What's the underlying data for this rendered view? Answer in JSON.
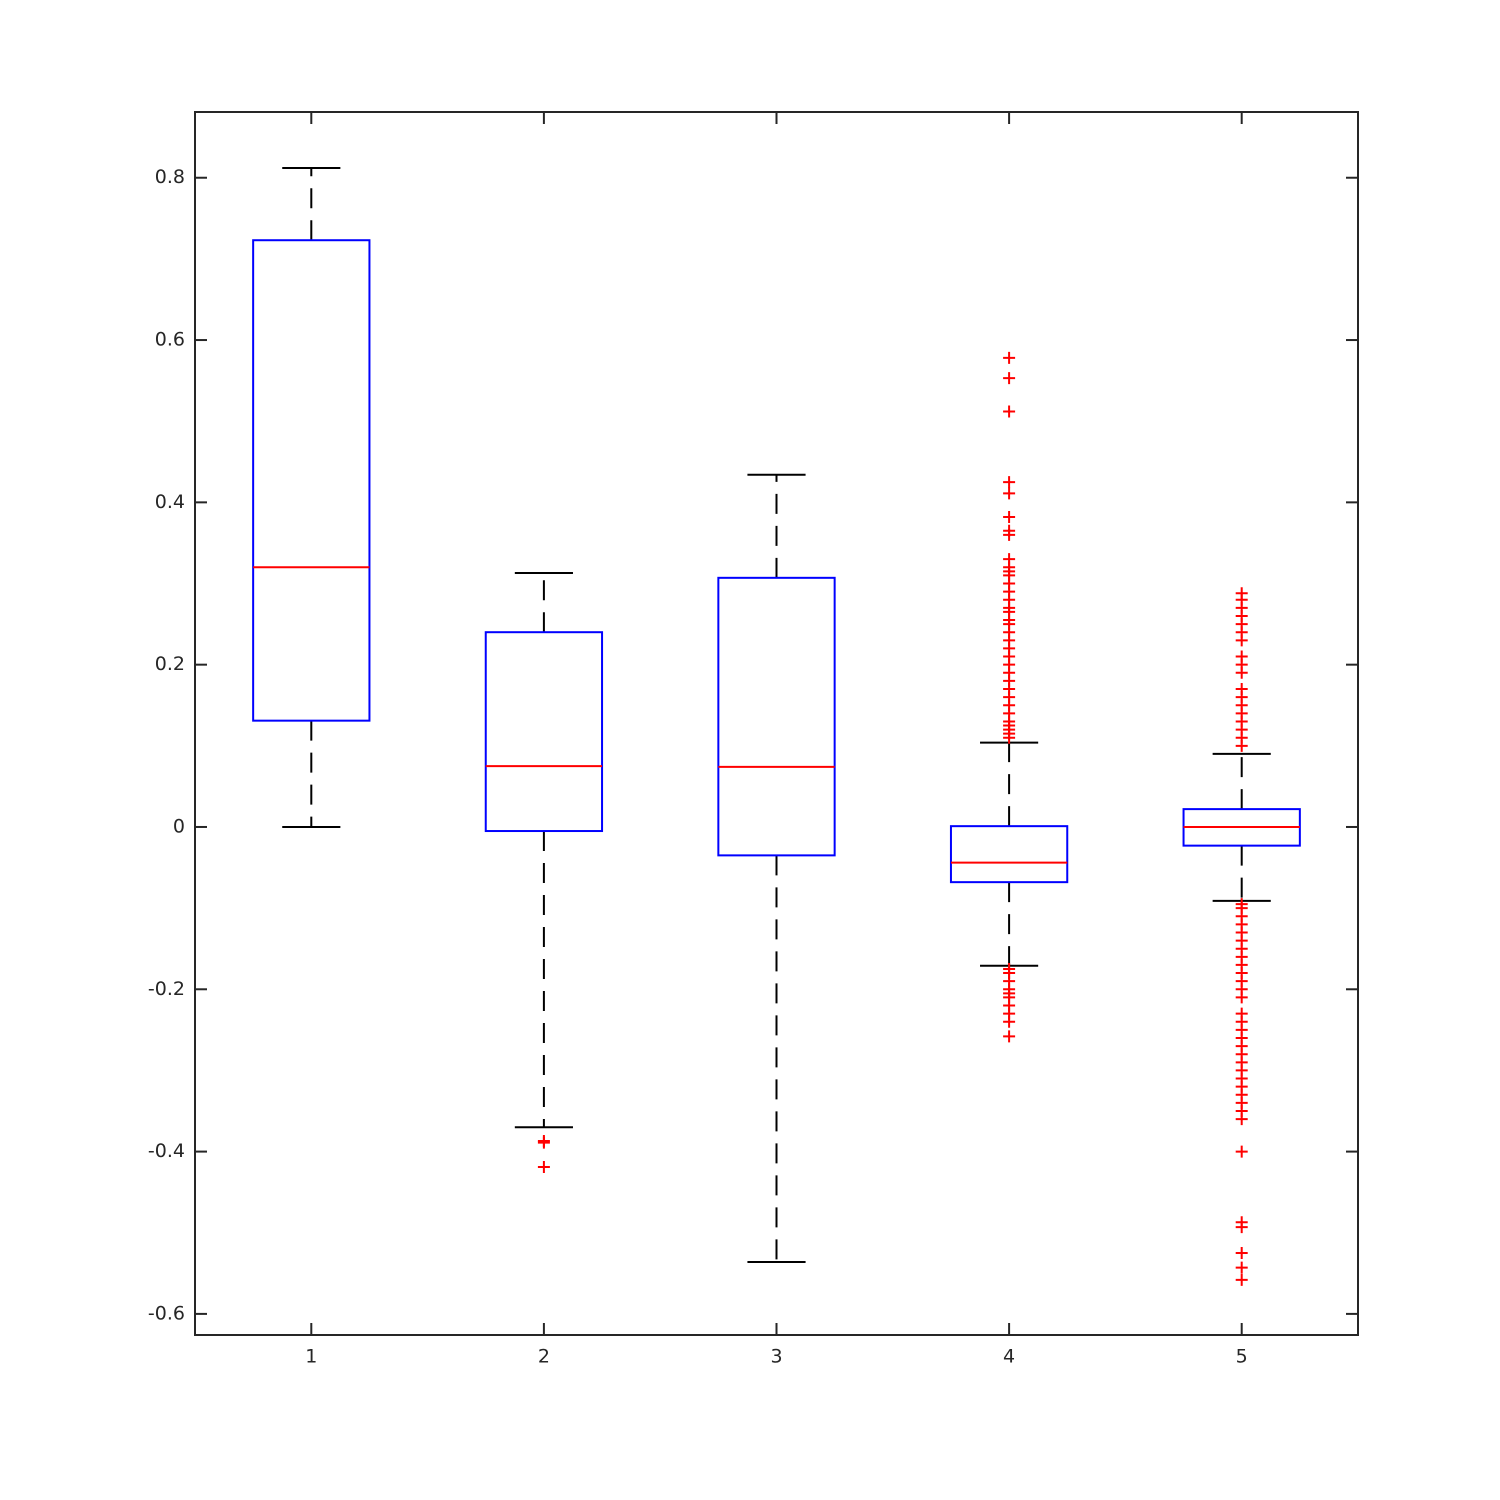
{
  "chart_data": {
    "type": "box",
    "categories": [
      "1",
      "2",
      "3",
      "4",
      "5"
    ],
    "ylim": [
      -0.626,
      0.881
    ],
    "yticks": [
      -0.6,
      -0.4,
      -0.2,
      0,
      0.2,
      0.4,
      0.6,
      0.8
    ],
    "box_color": "#0000ff",
    "median_color": "#ff0000",
    "whisker_color": "#000000",
    "outlier_color": "#ff0000",
    "boxes": [
      {
        "whisker_low": 0,
        "q1": 0.131,
        "median": 0.32,
        "q3": 0.723,
        "whisker_high": 0.812,
        "outliers": []
      },
      {
        "whisker_low": -0.37,
        "q1": -0.005,
        "median": 0.075,
        "q3": 0.24,
        "whisker_high": 0.313,
        "outliers": [
          -0.387,
          -0.389,
          -0.419
        ]
      },
      {
        "whisker_low": -0.536,
        "q1": -0.035,
        "median": 0.074,
        "q3": 0.307,
        "whisker_high": 0.434,
        "outliers": []
      },
      {
        "whisker_low": -0.171,
        "q1": -0.068,
        "median": -0.044,
        "q3": 0.001,
        "whisker_high": 0.104,
        "outliers": [
          0.578,
          0.553,
          0.512,
          0.425,
          0.411,
          0.382,
          0.365,
          0.36,
          0.33,
          0.32,
          0.315,
          0.31,
          0.3,
          0.29,
          0.28,
          0.27,
          0.265,
          0.255,
          0.25,
          0.24,
          0.23,
          0.22,
          0.21,
          0.2,
          0.19,
          0.18,
          0.17,
          0.16,
          0.15,
          0.14,
          0.13,
          0.125,
          0.12,
          0.115,
          0.11,
          -0.175,
          -0.18,
          -0.19,
          -0.2,
          -0.205,
          -0.21,
          -0.22,
          -0.23,
          -0.24,
          -0.258
        ]
      },
      {
        "whisker_low": -0.091,
        "q1": -0.023,
        "median": 0,
        "q3": 0.022,
        "whisker_high": 0.09,
        "outliers": [
          0.288,
          0.28,
          0.27,
          0.26,
          0.25,
          0.24,
          0.23,
          0.21,
          0.2,
          0.19,
          0.17,
          0.16,
          0.15,
          0.14,
          0.13,
          0.12,
          0.11,
          0.1,
          -0.095,
          -0.1,
          -0.11,
          -0.12,
          -0.13,
          -0.14,
          -0.15,
          -0.16,
          -0.17,
          -0.18,
          -0.19,
          -0.2,
          -0.21,
          -0.23,
          -0.24,
          -0.25,
          -0.26,
          -0.27,
          -0.28,
          -0.29,
          -0.3,
          -0.31,
          -0.32,
          -0.33,
          -0.34,
          -0.35,
          -0.36,
          -0.4,
          -0.487,
          -0.493,
          -0.525,
          -0.543,
          -0.558
        ]
      }
    ]
  }
}
